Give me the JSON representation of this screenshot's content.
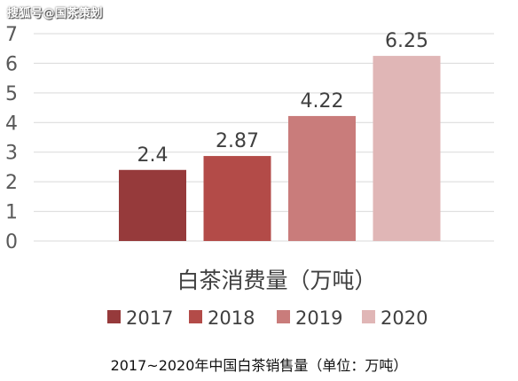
{
  "watermark": "搜狐号@国茶策划",
  "caption": "2017~2020年中国白茶销售量（单位：万吨）",
  "chart_data": {
    "type": "bar",
    "title": "",
    "xlabel": "白茶消费量（万吨）",
    "ylabel": "",
    "ylim": [
      0,
      7
    ],
    "yticks": [
      "0",
      "1",
      "2",
      "3",
      "4",
      "5",
      "6",
      "7"
    ],
    "grid": true,
    "legend_position": "bottom",
    "series": [
      {
        "name": "2017",
        "value": 2.4,
        "label": "2.4",
        "color": "#963a3b"
      },
      {
        "name": "2018",
        "value": 2.87,
        "label": "2.87",
        "color": "#b34b48"
      },
      {
        "name": "2019",
        "value": 4.22,
        "label": "4.22",
        "color": "#c97c7b"
      },
      {
        "name": "2020",
        "value": 6.25,
        "label": "6.25",
        "color": "#e0b6b6"
      }
    ]
  }
}
